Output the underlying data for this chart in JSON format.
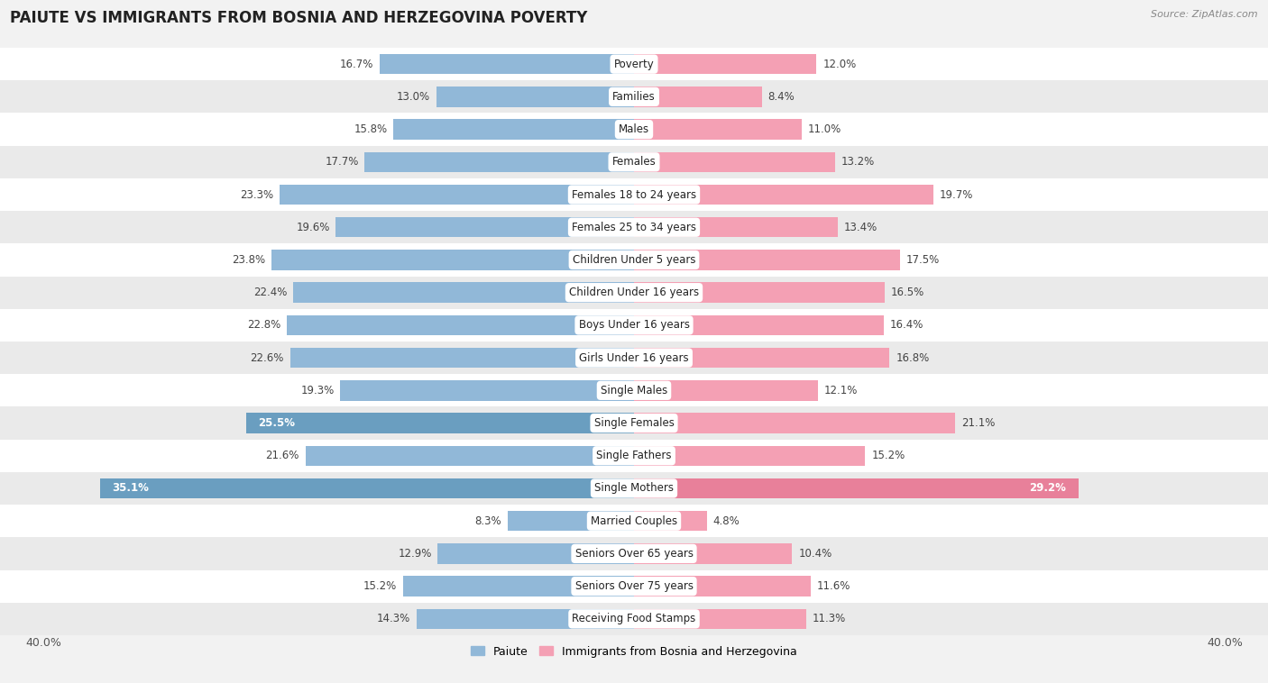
{
  "title": "PAIUTE VS IMMIGRANTS FROM BOSNIA AND HERZEGOVINA POVERTY",
  "source": "Source: ZipAtlas.com",
  "categories": [
    "Poverty",
    "Families",
    "Males",
    "Females",
    "Females 18 to 24 years",
    "Females 25 to 34 years",
    "Children Under 5 years",
    "Children Under 16 years",
    "Boys Under 16 years",
    "Girls Under 16 years",
    "Single Males",
    "Single Females",
    "Single Fathers",
    "Single Mothers",
    "Married Couples",
    "Seniors Over 65 years",
    "Seniors Over 75 years",
    "Receiving Food Stamps"
  ],
  "paiute_values": [
    16.7,
    13.0,
    15.8,
    17.7,
    23.3,
    19.6,
    23.8,
    22.4,
    22.8,
    22.6,
    19.3,
    25.5,
    21.6,
    35.1,
    8.3,
    12.9,
    15.2,
    14.3
  ],
  "bosnia_values": [
    12.0,
    8.4,
    11.0,
    13.2,
    19.7,
    13.4,
    17.5,
    16.5,
    16.4,
    16.8,
    12.1,
    21.1,
    15.2,
    29.2,
    4.8,
    10.4,
    11.6,
    11.3
  ],
  "paiute_color": "#91b8d8",
  "bosnia_color": "#f4a0b4",
  "highlight_paiute_indices": [
    11,
    13
  ],
  "highlight_bosnia_indices": [
    13
  ],
  "highlight_paiute_color": "#6a9ec0",
  "highlight_bosnia_color": "#e8809a",
  "bar_height": 0.62,
  "xlim": 40.0,
  "bg_color": "#f2f2f2",
  "row_colors": [
    "#ffffff",
    "#eaeaea"
  ],
  "title_fontsize": 12,
  "label_fontsize": 8.5,
  "value_fontsize": 8.5,
  "legend_paiute": "Paiute",
  "legend_bosnia": "Immigrants from Bosnia and Herzegovina"
}
